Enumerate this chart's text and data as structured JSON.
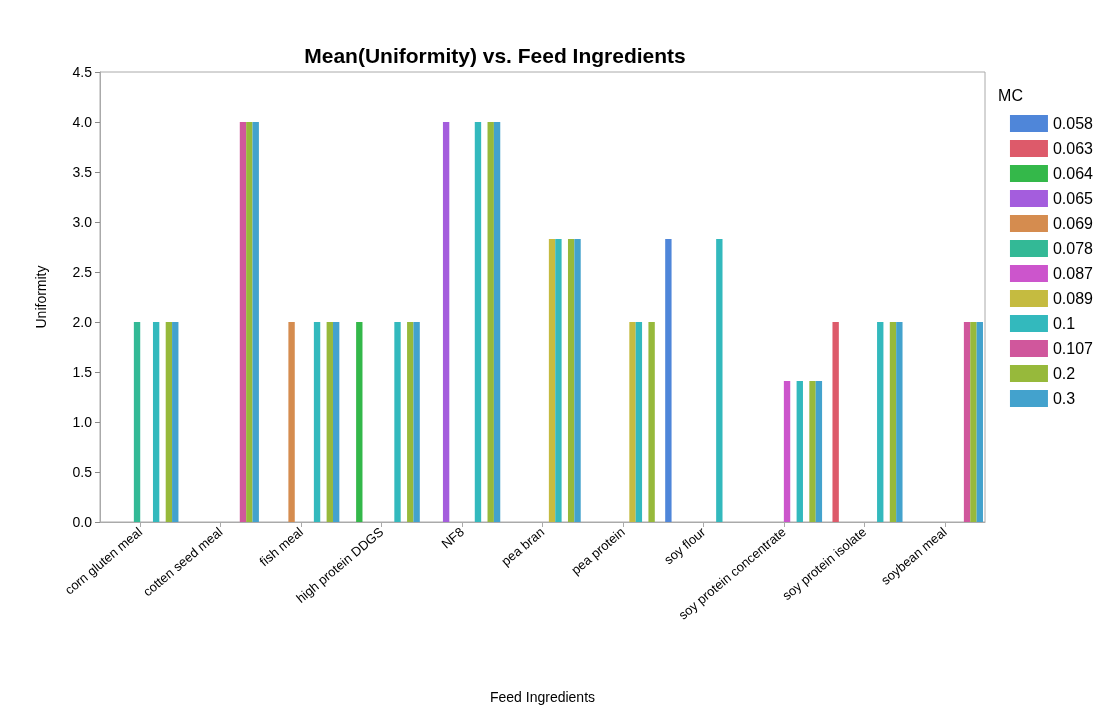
{
  "chart_data": {
    "type": "bar",
    "title": "Mean(Uniformity) vs. Feed Ingredients",
    "xlabel": "Feed Ingredients",
    "ylabel": "Uniformity",
    "legend_title": "MC",
    "legend": "right",
    "categories": [
      "corn gluten meal",
      "cotten seed meal",
      "fish meal",
      "high protein DDGS",
      "NF8",
      "pea bran",
      "pea protein",
      "soy flour",
      "soy protein concentrate",
      "soy protein isolate",
      "soybean meal"
    ],
    "ylim": [
      0,
      4.5
    ],
    "yticks": [
      {
        "value": 0,
        "label": "0.0"
      },
      0.5,
      {
        "value": 1,
        "label": "1.0"
      },
      1.5,
      {
        "value": 2,
        "label": "2.0"
      },
      2.5,
      {
        "value": 3,
        "label": "3.0"
      },
      3.5,
      {
        "value": 4,
        "label": "4.0"
      },
      4.5
    ],
    "series": [
      {
        "name": "0.058",
        "color": "#4f86d9",
        "values": [
          null,
          null,
          null,
          null,
          null,
          null,
          null,
          2.83,
          null,
          null,
          null
        ]
      },
      {
        "name": "0.063",
        "color": "#dd5a6a",
        "values": [
          null,
          null,
          null,
          null,
          null,
          null,
          null,
          null,
          null,
          2,
          null
        ]
      },
      {
        "name": "0.064",
        "color": "#34b84a",
        "values": [
          null,
          null,
          null,
          2,
          null,
          null,
          null,
          null,
          null,
          null,
          null
        ]
      },
      {
        "name": "0.065",
        "color": "#a45ddd",
        "values": [
          null,
          null,
          null,
          null,
          4,
          null,
          null,
          null,
          null,
          null,
          null
        ]
      },
      {
        "name": "0.069",
        "color": "#d58c4f",
        "values": [
          null,
          null,
          2,
          null,
          null,
          null,
          null,
          null,
          null,
          null,
          null
        ]
      },
      {
        "name": "0.078",
        "color": "#33b996",
        "values": [
          2,
          null,
          null,
          null,
          null,
          null,
          null,
          null,
          null,
          null,
          null
        ]
      },
      {
        "name": "0.087",
        "color": "#cc55cc",
        "values": [
          null,
          null,
          null,
          null,
          null,
          null,
          null,
          null,
          1.41,
          null,
          null
        ]
      },
      {
        "name": "0.089",
        "color": "#c5bb40",
        "values": [
          null,
          null,
          null,
          null,
          null,
          2.83,
          2,
          null,
          null,
          null,
          null
        ]
      },
      {
        "name": "0.1",
        "color": "#33b9bd",
        "values": [
          2,
          null,
          2,
          2,
          4,
          2.83,
          2,
          2.83,
          1.41,
          2,
          null
        ]
      },
      {
        "name": "0.107",
        "color": "#d0579c",
        "values": [
          null,
          4,
          null,
          null,
          null,
          null,
          null,
          null,
          null,
          null,
          2
        ]
      },
      {
        "name": "0.2",
        "color": "#97b93b",
        "values": [
          2,
          4,
          2,
          2,
          4,
          2.83,
          2,
          null,
          1.41,
          2,
          2
        ]
      },
      {
        "name": "0.3",
        "color": "#43a2cd",
        "values": [
          2,
          4,
          2,
          2,
          4,
          2.83,
          null,
          null,
          1.41,
          2,
          2
        ]
      }
    ]
  }
}
